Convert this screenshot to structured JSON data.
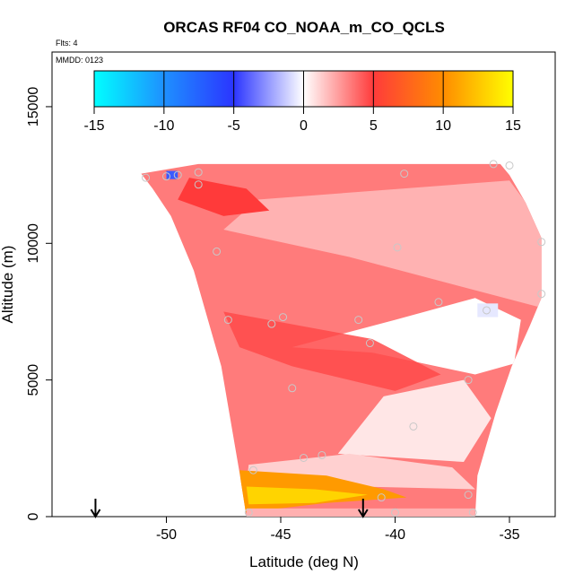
{
  "chart_data": {
    "type": "heatmap",
    "title": "ORCAS RF04 CO_NOAA_m_CO_QCLS",
    "flights_label": "Flts: 4",
    "date_label": "MMDD: 0123",
    "xlabel": "Latitude (deg N)",
    "ylabel": "Altitude (m)",
    "xlim": [
      -55,
      -33
    ],
    "ylim": [
      0,
      17000
    ],
    "x_ticks": [
      -50,
      -45,
      -40,
      -35
    ],
    "y_ticks": [
      0,
      5000,
      10000,
      15000
    ],
    "colorbar": {
      "range": [
        -15,
        15
      ],
      "ticks": [
        -15,
        -10,
        -5,
        0,
        5,
        10,
        15
      ],
      "colors": [
        "#00ffff",
        "#1e90ff",
        "#2b35ff",
        "#ffffff",
        "#ff3b3b",
        "#ff8c00",
        "#ffff00"
      ]
    },
    "arrows_latitude": [
      -53.1,
      -41.4
    ],
    "sample_points": [
      {
        "lat": -50.9,
        "alt": 12400
      },
      {
        "lat": -50.0,
        "alt": 12450
      },
      {
        "lat": -49.5,
        "alt": 12500
      },
      {
        "lat": -48.6,
        "alt": 12150
      },
      {
        "lat": -48.6,
        "alt": 12600
      },
      {
        "lat": -47.8,
        "alt": 9700
      },
      {
        "lat": -47.3,
        "alt": 7200
      },
      {
        "lat": -45.4,
        "alt": 7050
      },
      {
        "lat": -44.9,
        "alt": 7300
      },
      {
        "lat": -44.5,
        "alt": 4700
      },
      {
        "lat": -43.2,
        "alt": 2250
      },
      {
        "lat": -44.0,
        "alt": 2150
      },
      {
        "lat": -41.6,
        "alt": 7200
      },
      {
        "lat": -41.1,
        "alt": 6350
      },
      {
        "lat": -39.9,
        "alt": 9850
      },
      {
        "lat": -39.2,
        "alt": 3300
      },
      {
        "lat": -38.1,
        "alt": 7850
      },
      {
        "lat": -36.8,
        "alt": 5000
      },
      {
        "lat": -36.0,
        "alt": 7550
      },
      {
        "lat": -35.0,
        "alt": 12850
      },
      {
        "lat": -35.7,
        "alt": 12900
      },
      {
        "lat": -33.6,
        "alt": 10050
      },
      {
        "lat": -33.6,
        "alt": 8150
      },
      {
        "lat": -39.6,
        "alt": 12550
      },
      {
        "lat": -40.6,
        "alt": 700
      },
      {
        "lat": -40.0,
        "alt": 150
      },
      {
        "lat": -36.6,
        "alt": 150
      },
      {
        "lat": -36.8,
        "alt": 800
      },
      {
        "lat": -46.4,
        "alt": 150
      },
      {
        "lat": -46.2,
        "alt": 1700
      }
    ],
    "grid": false
  }
}
